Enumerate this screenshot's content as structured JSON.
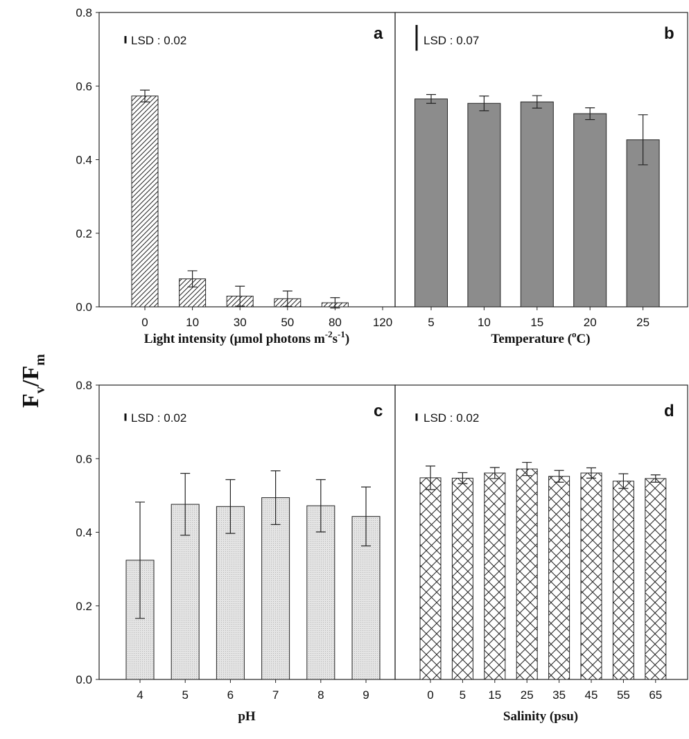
{
  "figure": {
    "ylabel": {
      "main_a": "F",
      "sub_a": "v",
      "slash": "/",
      "main_b": "F",
      "sub_b": "m"
    }
  },
  "chart_data": [
    {
      "panel": "a",
      "type": "bar",
      "categories": [
        "0",
        "10",
        "30",
        "50",
        "80",
        "120"
      ],
      "values": [
        0.573,
        0.076,
        0.029,
        0.022,
        0.011,
        0.0
      ],
      "errors": [
        0.016,
        0.022,
        0.027,
        0.021,
        0.014,
        0.0
      ],
      "xlabel": {
        "pre": "Light intensity (μmol photons m",
        "sup1": "-2",
        "mid": "s",
        "sup2": "-1",
        "post": ")"
      },
      "ylim": [
        0,
        0.8
      ],
      "yticks": [
        "0.0",
        "0.2",
        "0.4",
        "0.6",
        "0.8"
      ],
      "lsd": {
        "label": "LSD : 0.02",
        "value": 0.02
      },
      "pattern": "hatch-diagonal",
      "fill_color": "#ffffff",
      "letter": "a"
    },
    {
      "panel": "b",
      "type": "bar",
      "categories": [
        "5",
        "10",
        "15",
        "20",
        "25"
      ],
      "values": [
        0.565,
        0.553,
        0.557,
        0.525,
        0.454
      ],
      "errors": [
        0.012,
        0.02,
        0.017,
        0.016,
        0.068
      ],
      "xlabel": {
        "pre": "Temperature (",
        "sup1": "o",
        "mid": "C)",
        "sup2": "",
        "post": ""
      },
      "ylim": [
        0,
        0.8
      ],
      "lsd": {
        "label": "LSD : 0.07",
        "value": 0.07
      },
      "pattern": "solid",
      "fill_color": "#8c8c8c",
      "letter": "b"
    },
    {
      "panel": "c",
      "type": "bar",
      "categories": [
        "4",
        "5",
        "6",
        "7",
        "8",
        "9"
      ],
      "values": [
        0.324,
        0.476,
        0.47,
        0.494,
        0.472,
        0.443
      ],
      "errors": [
        0.158,
        0.084,
        0.073,
        0.073,
        0.071,
        0.08
      ],
      "xlabel": {
        "pre": "pH",
        "sup1": "",
        "mid": "",
        "sup2": "",
        "post": ""
      },
      "ylim": [
        0,
        0.8
      ],
      "yticks": [
        "0.0",
        "0.2",
        "0.4",
        "0.6",
        "0.8"
      ],
      "lsd": {
        "label": "LSD : 0.02",
        "value": 0.02
      },
      "pattern": "dotted",
      "fill_color": "#e4e4e4",
      "letter": "c"
    },
    {
      "panel": "d",
      "type": "bar",
      "categories": [
        "0",
        "5",
        "15",
        "25",
        "35",
        "45",
        "55",
        "65"
      ],
      "values": [
        0.548,
        0.547,
        0.561,
        0.572,
        0.552,
        0.561,
        0.539,
        0.546
      ],
      "errors": [
        0.032,
        0.015,
        0.015,
        0.018,
        0.016,
        0.014,
        0.02,
        0.01
      ],
      "xlabel": {
        "pre": "Salinity (psu)",
        "sup1": "",
        "mid": "",
        "sup2": "",
        "post": ""
      },
      "ylim": [
        0,
        0.8
      ],
      "lsd": {
        "label": "LSD : 0.02",
        "value": 0.02
      },
      "pattern": "crosshatch",
      "fill_color": "#ffffff",
      "letter": "d"
    }
  ]
}
